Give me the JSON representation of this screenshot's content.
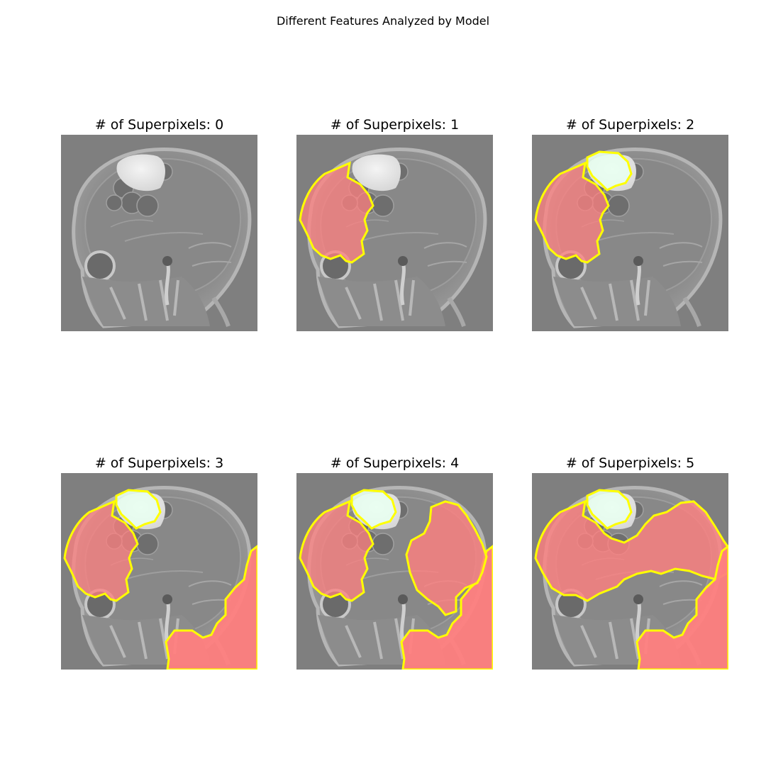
{
  "figure": {
    "suptitle": "Different Features Analyzed by Model",
    "panels": [
      {
        "title": "# of Superpixels: 0",
        "superpixel_count": 0
      },
      {
        "title": "# of Superpixels: 1",
        "superpixel_count": 1
      },
      {
        "title": "# of Superpixels: 2",
        "superpixel_count": 2
      },
      {
        "title": "# of Superpixels: 3",
        "superpixel_count": 3
      },
      {
        "title": "# of Superpixels: 4",
        "superpixel_count": 4
      },
      {
        "title": "# of Superpixels: 5",
        "superpixel_count": 5
      }
    ]
  },
  "colors": {
    "background_gray": "#7f7f7f",
    "boundary_yellow": "#ffff00",
    "positive_region_red": "#ff8080",
    "negative_region_green": "#e8fff0"
  }
}
